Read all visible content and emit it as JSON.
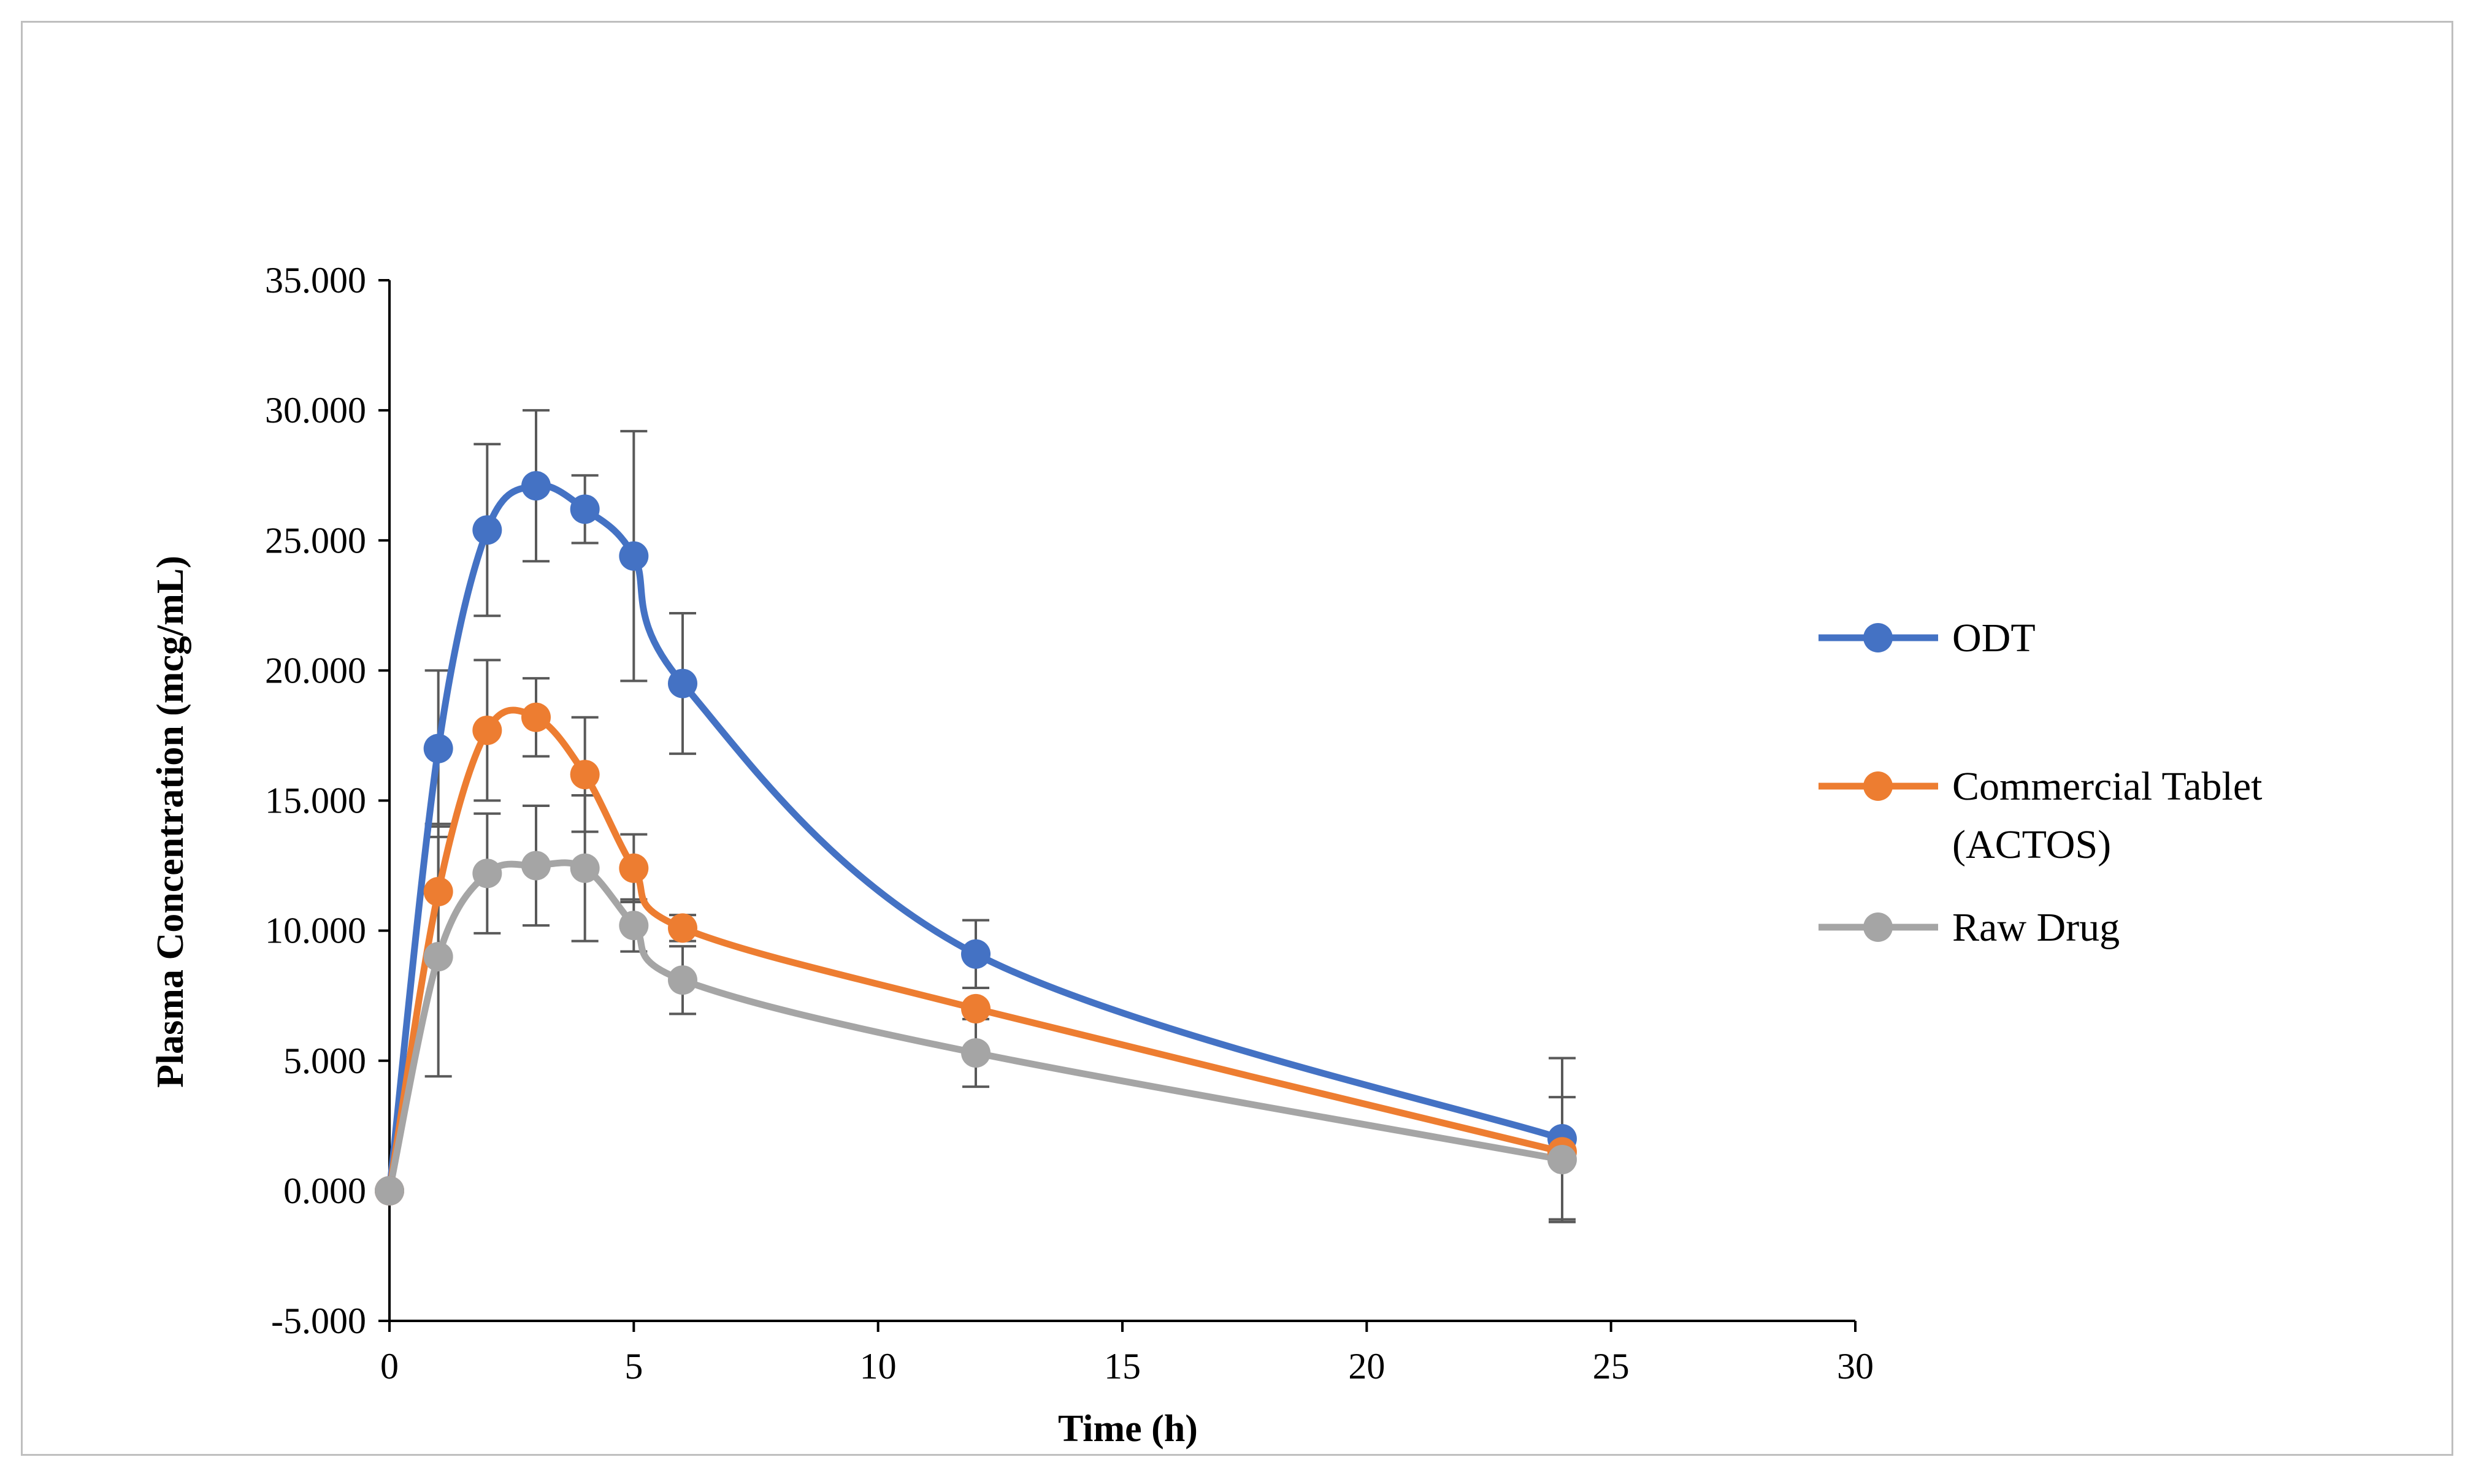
{
  "chart_data": {
    "type": "line",
    "title": "",
    "xlabel": "Time (h)",
    "ylabel": "Plasma Concentration (mcg/mL)",
    "xlim": [
      0,
      30
    ],
    "ylim": [
      -5,
      35
    ],
    "x_ticks": [
      0,
      5,
      10,
      15,
      20,
      25,
      30
    ],
    "x_tick_labels": [
      "0",
      "5",
      "10",
      "15",
      "20",
      "25",
      "30"
    ],
    "y_ticks": [
      -5,
      0,
      5,
      10,
      15,
      20,
      25,
      30,
      35
    ],
    "y_tick_labels": [
      "-5.000",
      "0.000",
      "5.000",
      "10.000",
      "15.000",
      "20.000",
      "25.000",
      "30.000",
      "35.000"
    ],
    "grid": false,
    "legend_position": "right",
    "x": [
      0,
      1,
      2,
      3,
      4,
      5,
      6,
      12,
      24
    ],
    "series": [
      {
        "name": "ODT",
        "legend_lines": [
          "ODT"
        ],
        "color": "#4472C4",
        "values": [
          0,
          17.0,
          25.4,
          27.1,
          26.2,
          24.4,
          19.5,
          9.1,
          2.0
        ],
        "errors": [
          0,
          3.0,
          3.3,
          2.9,
          1.3,
          4.8,
          2.7,
          1.3,
          3.1
        ]
      },
      {
        "name": "Commercial Tablet (ACTOS)",
        "legend_lines": [
          "Commercial Tablet",
          "(ACTOS)"
        ],
        "color": "#ED7D31",
        "values": [
          0,
          11.5,
          17.7,
          18.2,
          16.0,
          12.4,
          10.1,
          7.0,
          1.5
        ],
        "errors": [
          0,
          2.6,
          2.7,
          1.5,
          2.2,
          1.3,
          0.5,
          0,
          0
        ]
      },
      {
        "name": "Raw Drug",
        "legend_lines": [
          "Raw Drug"
        ],
        "color": "#A5A5A5",
        "values": [
          0,
          9.0,
          12.2,
          12.5,
          12.4,
          10.2,
          8.1,
          5.3,
          1.2
        ],
        "errors": [
          0,
          4.6,
          2.3,
          2.3,
          2.8,
          1.0,
          1.3,
          1.3,
          2.4
        ]
      }
    ]
  }
}
